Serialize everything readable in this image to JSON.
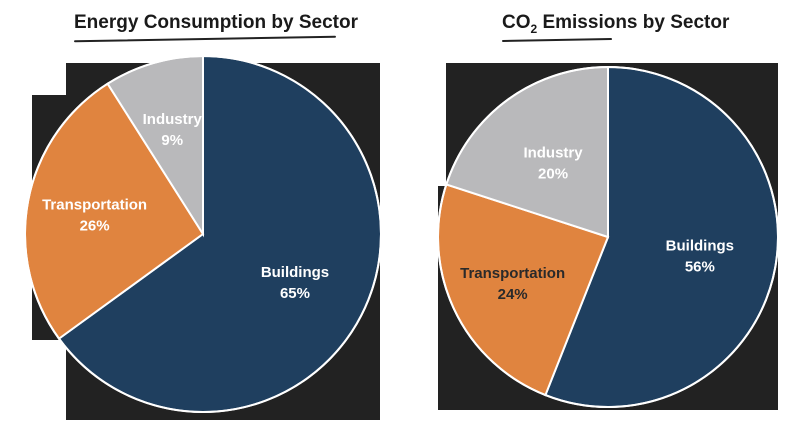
{
  "chart_data": [
    {
      "type": "pie",
      "title": "Energy Consumption by Sector",
      "slices": [
        {
          "label": "Buildings",
          "value": 65,
          "value_label": "65%",
          "color": "#1f3f5f",
          "text_color": "#ffffff"
        },
        {
          "label": "Transportation",
          "value": 26,
          "value_label": "26%",
          "color": "#e0843f",
          "text_color": "#ffffff"
        },
        {
          "label": "Industry",
          "value": 9,
          "value_label": "9%",
          "color": "#b9b9bb",
          "text_color": "#ffffff"
        }
      ]
    },
    {
      "type": "pie",
      "title_main": "CO",
      "title_sub": "2",
      "title_rest": " Emissions by Sector",
      "slices": [
        {
          "label": "Buildings",
          "value": 56,
          "value_label": "56%",
          "color": "#1f3f5f",
          "text_color": "#ffffff"
        },
        {
          "label": "Transportation",
          "value": 24,
          "value_label": "24%",
          "color": "#e0843f",
          "text_color": "#2a2a2a"
        },
        {
          "label": "Industry",
          "value": 20,
          "value_label": "20%",
          "color": "#b9b9bb",
          "text_color": "#ffffff"
        }
      ]
    }
  ],
  "colors": {
    "backdrop": "#222222",
    "slice_border": "#ffffff"
  }
}
